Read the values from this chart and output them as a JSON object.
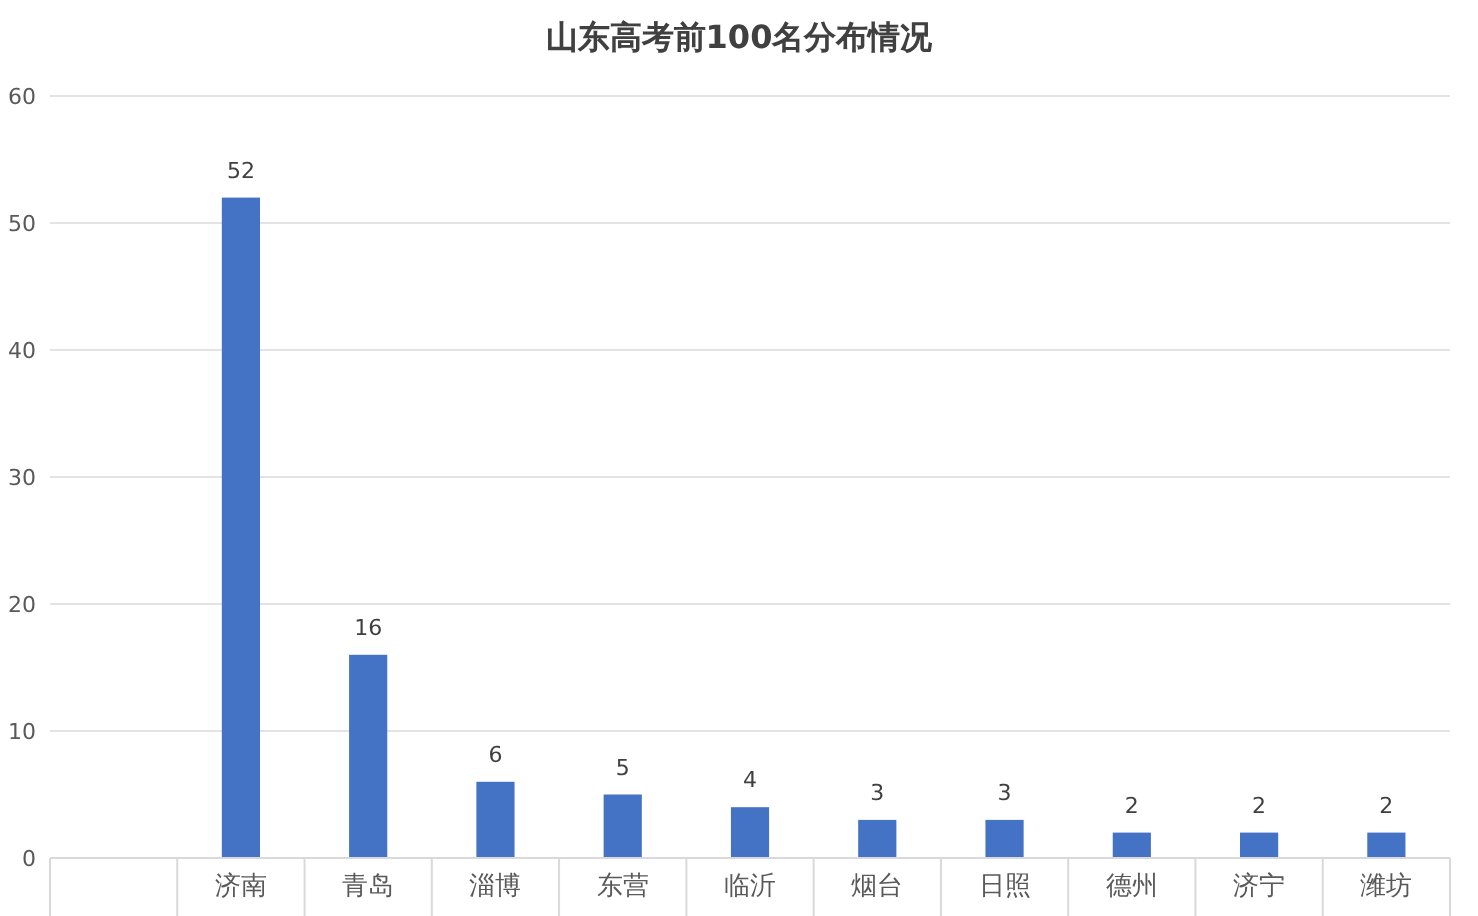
{
  "chart_data": {
    "type": "bar",
    "title": "山东高考前100名分布情况",
    "categories": [
      null,
      "济南",
      "青岛",
      "淄博",
      "东营",
      "临沂",
      "烟台",
      "日照",
      "德州",
      "济宁",
      "潍坊"
    ],
    "values": [
      null,
      52,
      16,
      6,
      5,
      4,
      3,
      3,
      2,
      2,
      2
    ],
    "color": "#4472c4",
    "ylim": [
      0,
      60
    ],
    "yticks": [
      0,
      10,
      20,
      30,
      40,
      50,
      60
    ],
    "grid": "y",
    "data_labels": true
  }
}
